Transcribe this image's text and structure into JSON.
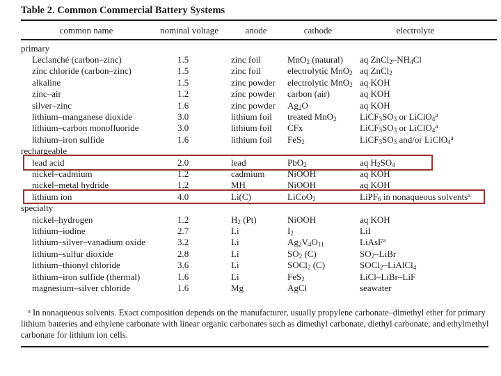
{
  "table": {
    "title": "Table 2. Common Commercial Battery Systems",
    "columns": [
      "common name",
      "nominal voltage",
      "anode",
      "cathode",
      "electrolyte"
    ],
    "sections": [
      {
        "label": "primary",
        "rows": [
          {
            "name": "Leclanché (carbon–zinc)",
            "voltage": "1.5",
            "anode": "zinc foil",
            "cathode": "MnO_{2} (natural)",
            "electrolyte": "aq ZnCl_{2}–NH_{4}Cl"
          },
          {
            "name": "zinc chloride (carbon–zinc)",
            "voltage": "1.5",
            "anode": "zinc foil",
            "cathode": "electrolytic MnO_{2}",
            "electrolyte": "aq ZnCl_{2}"
          },
          {
            "name": "alkaline",
            "voltage": "1.5",
            "anode": "zinc powder",
            "cathode": "electrolytic MnO_{2}",
            "electrolyte": "aq KOH"
          },
          {
            "name": "zinc–air",
            "voltage": "1.2",
            "anode": "zinc powder",
            "cathode": "carbon (air)",
            "electrolyte": "aq KOH"
          },
          {
            "name": "silver–zinc",
            "voltage": "1.6",
            "anode": "zinc powder",
            "cathode": "Ag_{2}O",
            "electrolyte": "aq KOH"
          },
          {
            "name": "lithium–manganese dioxide",
            "voltage": "3.0",
            "anode": "lithium foil",
            "cathode": "treated MnO_{2}",
            "electrolyte": "LiCF_{3}SO_{3} or LiClO_{4}^{a}"
          },
          {
            "name": "lithium–carbon monofluoride",
            "voltage": "3.0",
            "anode": "lithium foil",
            "cathode": "CFx",
            "electrolyte": "LiCF_{3}SO_{3} or LiClO_{4}^{a}"
          },
          {
            "name": "lithium–iron sulfide",
            "voltage": "1.6",
            "anode": "lithium foil",
            "cathode": "FeS_{2}",
            "electrolyte": "LiCF_{3}SO_{3} and/or LiClO_{4}^{a}"
          }
        ]
      },
      {
        "label": "rechargeable",
        "rows": [
          {
            "name": "lead acid",
            "voltage": "2.0",
            "anode": "lead",
            "cathode": "PbO_{2}",
            "electrolyte": "aq H_{2}SO_{4}",
            "highlighted": true
          },
          {
            "name": "nickel–cadmium",
            "voltage": "1.2",
            "anode": "cadmium",
            "cathode": "NiOOH",
            "electrolyte": "aq KOH"
          },
          {
            "name": "nickel–metal hydride",
            "voltage": "1.2",
            "anode": "MH",
            "cathode": "NiOOH",
            "electrolyte": "aq KOH"
          },
          {
            "name": "lithium ion",
            "voltage": "4.0",
            "anode": "Li(C)",
            "cathode": "LiCoO_{2}",
            "electrolyte": "LiPF_{6} in nonaqueous solvents^{a}",
            "highlighted": true
          }
        ]
      },
      {
        "label": "specialty",
        "rows": [
          {
            "name": "nickel–hydrogen",
            "voltage": "1.2",
            "anode": "H_{2} (Pt)",
            "cathode": "NiOOH",
            "electrolyte": "aq KOH"
          },
          {
            "name": "lithium–iodine",
            "voltage": "2.7",
            "anode": "Li",
            "cathode": "I_{2}",
            "electrolyte": "LiI"
          },
          {
            "name": "lithium–silver–vanadium oxide",
            "voltage": "3.2",
            "anode": "Li",
            "cathode": "Ag_{2}V_{4}O_{11}",
            "electrolyte": "LiAsF^{a}"
          },
          {
            "name": "lithium–sulfur dioxide",
            "voltage": "2.8",
            "anode": "Li",
            "cathode": "SO_{2} (C)",
            "electrolyte": "SO_{2}–LiBr"
          },
          {
            "name": "lithium–thionyl chloride",
            "voltage": "3.6",
            "anode": "Li",
            "cathode": "SOCl_{2} (C)",
            "electrolyte": "SOCl_{2}–LiAlCl_{4}"
          },
          {
            "name": "lithium–iron sulfide (thermal)",
            "voltage": "1.6",
            "anode": "Li",
            "cathode": "FeS_{2}",
            "electrolyte": "LiCl–LiBr–LiF"
          },
          {
            "name": "magnesium–silver chloride",
            "voltage": "1.6",
            "anode": "Mg",
            "cathode": "AgCl",
            "electrolyte": "seawater"
          }
        ]
      }
    ],
    "highlighted_rows": [
      "lead acid",
      "lithium ion"
    ]
  },
  "footnote": "^{a} In nonaqueous solvents. Exact composition depends on the manufacturer, usually propylene carbonate–dimethyl ether for primary lithium batteries and ethylene carbonate with linear organic carbonates such as dimethyl carbonate, diethyl carbonate, and ethylmethyl carbonate for lithium ion cells.",
  "colors": {
    "highlight_border": "#993433",
    "rule": "#1a1a1a",
    "text": "#1c1c1c",
    "background": "#ffffff"
  }
}
